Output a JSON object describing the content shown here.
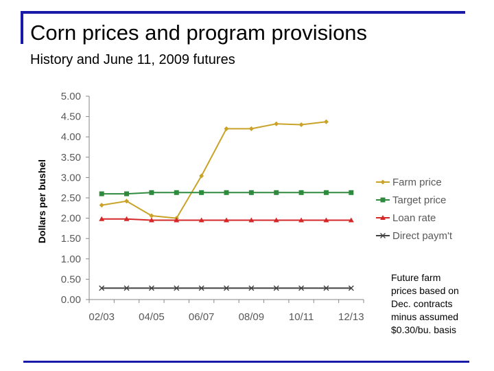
{
  "slide": {
    "title": "Corn prices and program provisions",
    "subtitle": "History and June 11, 2009 futures",
    "note_lines": [
      "Future farm",
      "prices based on",
      "Dec. contracts",
      "minus assumed",
      "$0.30/bu. basis"
    ]
  },
  "chart_data": {
    "type": "line",
    "title": "",
    "xlabel": "",
    "ylabel": "Dollars per bushel",
    "ylim": [
      0,
      5
    ],
    "y_ticks": [
      "0.00",
      "0.50",
      "1.00",
      "1.50",
      "2.00",
      "2.50",
      "3.00",
      "3.50",
      "4.00",
      "4.50",
      "5.00"
    ],
    "x_tick_labels": [
      "02/03",
      "04/05",
      "06/07",
      "08/09",
      "10/11",
      "12/13"
    ],
    "categories": [
      "02/03",
      "03/04",
      "04/05",
      "05/06",
      "06/07",
      "07/08",
      "08/09",
      "09/10",
      "10/11",
      "11/12",
      "12/13"
    ],
    "grid": false,
    "legend_position": "right",
    "series": [
      {
        "name": "Farm price",
        "color": "#c9a227",
        "marker": "diamond",
        "values": [
          2.32,
          2.42,
          2.06,
          2.0,
          3.04,
          4.2,
          4.2,
          4.32,
          4.3,
          4.37,
          null
        ]
      },
      {
        "name": "Target price",
        "color": "#2e8b3e",
        "marker": "square",
        "values": [
          2.6,
          2.6,
          2.63,
          2.63,
          2.63,
          2.63,
          2.63,
          2.63,
          2.63,
          2.63,
          2.63
        ]
      },
      {
        "name": "Loan rate",
        "color": "#d62728",
        "marker": "triangle",
        "values": [
          1.98,
          1.98,
          1.95,
          1.95,
          1.95,
          1.95,
          1.95,
          1.95,
          1.95,
          1.95,
          1.95
        ]
      },
      {
        "name": "Direct paym't",
        "color": "#404040",
        "marker": "x",
        "values": [
          0.28,
          0.28,
          0.28,
          0.28,
          0.28,
          0.28,
          0.28,
          0.28,
          0.28,
          0.28,
          0.28
        ]
      }
    ]
  }
}
